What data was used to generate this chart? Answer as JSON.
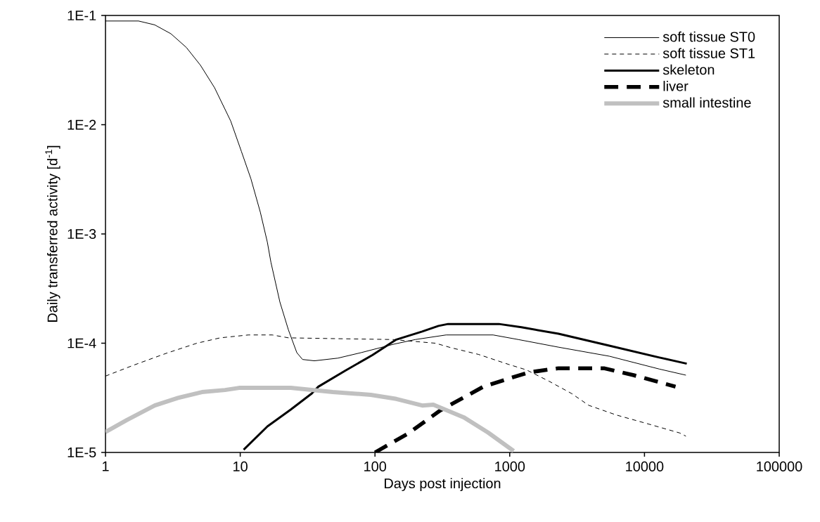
{
  "chart_data": {
    "type": "line",
    "xlabel": "Days post injection",
    "ylabel": "Daily transferred activity [d$^{-1}$]",
    "log": "xy",
    "legend": "top right",
    "grid": false,
    "xlim": [
      1,
      100000
    ],
    "ylim": [
      1e-05,
      0.1
    ],
    "xticks": [
      1,
      10,
      100,
      1000,
      10000,
      100000
    ],
    "yticks": [
      {
        "value": 1e-05,
        "label": "1E-5"
      },
      {
        "value": 0.0001,
        "label": "1E-4"
      },
      {
        "value": 0.001,
        "label": "1E-3"
      },
      {
        "value": 0.01,
        "label": "1E-2"
      },
      {
        "value": 0.1,
        "label": "1E-1"
      }
    ],
    "series": [
      {
        "name": "soft tissue ST0",
        "color": "#000000",
        "line_style": "solid",
        "x": [
          1,
          1.76,
          2.32,
          3.06,
          3.98,
          5.07,
          6.45,
          8.5,
          10.2,
          12,
          14.1,
          15.9,
          16.9,
          19.7,
          22.8,
          26.3,
          29,
          35.5,
          53,
          79,
          138,
          199,
          337,
          753,
          1160,
          2300,
          5500,
          12900,
          20300
        ],
        "values": [
          0.089,
          0.089,
          0.082,
          0.068,
          0.051,
          0.035,
          0.0218,
          0.0108,
          0.0057,
          0.0032,
          0.00158,
          0.00084,
          0.00055,
          0.000238,
          0.000132,
          8.2e-05,
          7.1e-05,
          6.9e-05,
          7.3e-05,
          8.2e-05,
          9.8e-05,
          0.000108,
          0.000119,
          0.000119,
          0.000108,
          9.2e-05,
          7.6e-05,
          5.8e-05,
          5.1e-05
        ]
      },
      {
        "name": "soft tissue ST1",
        "color": "#000000",
        "line_style": "dashed",
        "x": [
          1,
          1.62,
          2.84,
          4.77,
          7.1,
          11.5,
          17.3,
          22.8,
          53,
          138,
          176,
          281,
          366,
          586,
          980,
          1330,
          1950,
          2870,
          3860,
          6200,
          10400,
          18200,
          20300
        ],
        "values": [
          5e-05,
          6.3e-05,
          8.1e-05,
          0.0001,
          0.000112,
          0.000119,
          0.000119,
          0.000112,
          0.00011,
          0.000108,
          0.000105,
          0.0001,
          9.1e-05,
          7.9e-05,
          6.4e-05,
          5.7e-05,
          4.5e-05,
          3.47e-05,
          2.7e-05,
          2.2e-05,
          1.84e-05,
          1.51e-05,
          1.41e-05
        ]
      },
      {
        "name": "skeleton",
        "color": "#000000",
        "line_style": "solid",
        "x": [
          10.6,
          15.9,
          23.7,
          34,
          38,
          60,
          96,
          144,
          224,
          296,
          349,
          830,
          1220,
          2300,
          5480,
          12900,
          20600
        ],
        "values": [
          1.06e-05,
          1.73e-05,
          2.47e-05,
          3.47e-05,
          4e-05,
          5.6e-05,
          7.8e-05,
          0.000108,
          0.000128,
          0.000144,
          0.00015,
          0.00015,
          0.00014,
          0.000122,
          9.5e-05,
          7.4e-05,
          6.5e-05
        ]
      },
      {
        "name": "liver",
        "color": "#000000",
        "line_style": "dashed",
        "x": [
          100,
          176,
          306,
          637,
          1375,
          2300,
          5000,
          8300,
          17000
        ],
        "values": [
          1e-05,
          1.49e-05,
          2.43e-05,
          4e-05,
          5.4e-05,
          5.9e-05,
          5.9e-05,
          5.1e-05,
          4e-05
        ]
      },
      {
        "name": "small intestine",
        "color": "#c0c0c0",
        "line_style": "solid",
        "x": [
          1,
          1.44,
          2.32,
          3.45,
          5.2,
          7.7,
          9.8,
          23.7,
          48.6,
          93,
          144,
          224,
          271,
          455,
          692,
          1070
        ],
        "values": [
          1.54e-05,
          1.98e-05,
          2.69e-05,
          3.16e-05,
          3.57e-05,
          3.73e-05,
          3.9e-05,
          3.9e-05,
          3.57e-05,
          3.37e-05,
          3.09e-05,
          2.69e-05,
          2.74e-05,
          2.1e-05,
          1.52e-05,
          1.03e-05
        ]
      }
    ]
  }
}
